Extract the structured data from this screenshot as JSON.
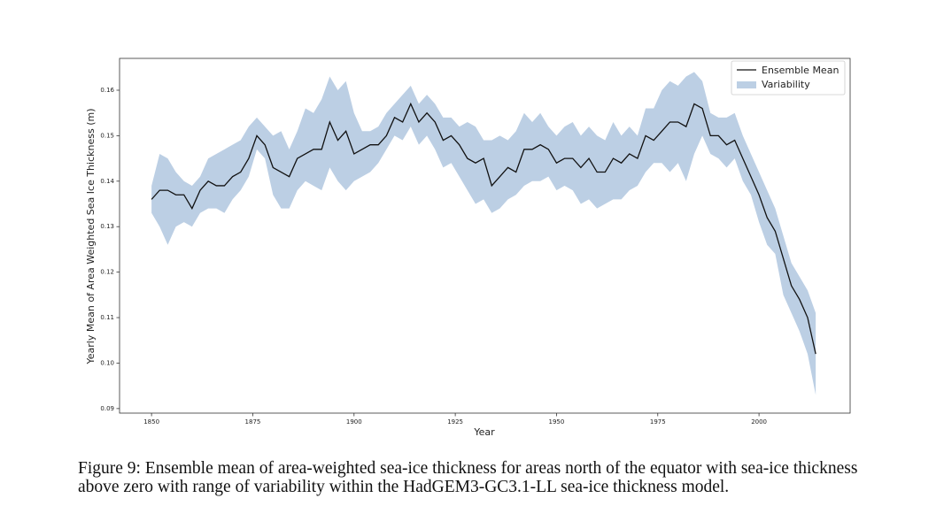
{
  "chart_data": {
    "type": "line",
    "xlabel": "Year",
    "ylabel": "Yearly Mean of Area Weighted Sea Ice Thickness (m)",
    "x": [
      1850,
      1852,
      1854,
      1856,
      1858,
      1860,
      1862,
      1864,
      1866,
      1868,
      1870,
      1872,
      1874,
      1876,
      1878,
      1880,
      1882,
      1884,
      1886,
      1888,
      1890,
      1892,
      1894,
      1896,
      1898,
      1900,
      1902,
      1904,
      1906,
      1908,
      1910,
      1912,
      1914,
      1916,
      1918,
      1920,
      1922,
      1924,
      1926,
      1928,
      1930,
      1932,
      1934,
      1936,
      1938,
      1940,
      1942,
      1944,
      1946,
      1948,
      1950,
      1952,
      1954,
      1956,
      1958,
      1960,
      1962,
      1964,
      1966,
      1968,
      1970,
      1972,
      1974,
      1976,
      1978,
      1980,
      1982,
      1984,
      1986,
      1988,
      1990,
      1992,
      1994,
      1996,
      1998,
      2000,
      2002,
      2004,
      2006,
      2008,
      2010,
      2012,
      2014
    ],
    "series": [
      {
        "name": "Ensemble Mean",
        "color": "#111111",
        "values": [
          0.136,
          0.138,
          0.138,
          0.137,
          0.137,
          0.134,
          0.138,
          0.14,
          0.139,
          0.139,
          0.141,
          0.142,
          0.145,
          0.15,
          0.148,
          0.143,
          0.142,
          0.141,
          0.145,
          0.146,
          0.147,
          0.147,
          0.153,
          0.149,
          0.151,
          0.146,
          0.147,
          0.148,
          0.148,
          0.15,
          0.154,
          0.153,
          0.157,
          0.153,
          0.155,
          0.153,
          0.149,
          0.15,
          0.148,
          0.145,
          0.144,
          0.145,
          0.139,
          0.141,
          0.143,
          0.142,
          0.147,
          0.147,
          0.148,
          0.147,
          0.144,
          0.145,
          0.145,
          0.143,
          0.145,
          0.142,
          0.142,
          0.145,
          0.144,
          0.146,
          0.145,
          0.15,
          0.149,
          0.151,
          0.153,
          0.153,
          0.152,
          0.157,
          0.156,
          0.15,
          0.15,
          0.148,
          0.149,
          0.145,
          0.141,
          0.137,
          0.132,
          0.129,
          0.123,
          0.117,
          0.114,
          0.11,
          0.102
        ]
      }
    ],
    "band": {
      "name": "Variability",
      "color": "#bccfe4",
      "upper": [
        0.139,
        0.146,
        0.145,
        0.142,
        0.14,
        0.139,
        0.141,
        0.145,
        0.146,
        0.147,
        0.148,
        0.149,
        0.152,
        0.154,
        0.152,
        0.15,
        0.151,
        0.147,
        0.151,
        0.156,
        0.155,
        0.158,
        0.163,
        0.16,
        0.162,
        0.155,
        0.151,
        0.151,
        0.152,
        0.155,
        0.157,
        0.159,
        0.161,
        0.157,
        0.159,
        0.157,
        0.154,
        0.154,
        0.152,
        0.153,
        0.152,
        0.149,
        0.149,
        0.15,
        0.149,
        0.151,
        0.155,
        0.153,
        0.155,
        0.152,
        0.15,
        0.152,
        0.153,
        0.15,
        0.152,
        0.15,
        0.149,
        0.153,
        0.15,
        0.152,
        0.15,
        0.156,
        0.156,
        0.16,
        0.162,
        0.161,
        0.163,
        0.164,
        0.162,
        0.155,
        0.154,
        0.154,
        0.155,
        0.15,
        0.146,
        0.142,
        0.138,
        0.134,
        0.128,
        0.122,
        0.119,
        0.116,
        0.111
      ],
      "lower": [
        0.133,
        0.13,
        0.126,
        0.13,
        0.131,
        0.13,
        0.133,
        0.134,
        0.134,
        0.133,
        0.136,
        0.138,
        0.141,
        0.147,
        0.145,
        0.137,
        0.134,
        0.134,
        0.138,
        0.14,
        0.139,
        0.138,
        0.143,
        0.14,
        0.138,
        0.14,
        0.141,
        0.142,
        0.144,
        0.147,
        0.15,
        0.149,
        0.152,
        0.148,
        0.15,
        0.147,
        0.143,
        0.144,
        0.141,
        0.138,
        0.135,
        0.136,
        0.133,
        0.134,
        0.136,
        0.137,
        0.139,
        0.14,
        0.14,
        0.141,
        0.138,
        0.139,
        0.138,
        0.135,
        0.136,
        0.134,
        0.135,
        0.136,
        0.136,
        0.138,
        0.139,
        0.142,
        0.144,
        0.144,
        0.142,
        0.144,
        0.14,
        0.146,
        0.15,
        0.146,
        0.145,
        0.143,
        0.145,
        0.14,
        0.137,
        0.131,
        0.126,
        0.124,
        0.115,
        0.111,
        0.107,
        0.102,
        0.093
      ]
    },
    "xlim": [
      1842.1,
      2022.5
    ],
    "ylim": [
      0.089,
      0.167
    ],
    "xticks": [
      1850,
      1875,
      1900,
      1925,
      1950,
      1975,
      2000
    ],
    "yticks": [
      0.09,
      {
        "value": 0.1,
        "label": "0.10"
      },
      0.11,
      0.12,
      0.13,
      0.14,
      0.15,
      0.16
    ],
    "legend": "upper right"
  },
  "caption": "Figure 9: Ensemble mean of area-weighted sea-ice thickness for areas north of the equator with sea-ice thickness above zero with range of variability within the HadGEM3-GC3.1-LL sea-ice thickness model."
}
